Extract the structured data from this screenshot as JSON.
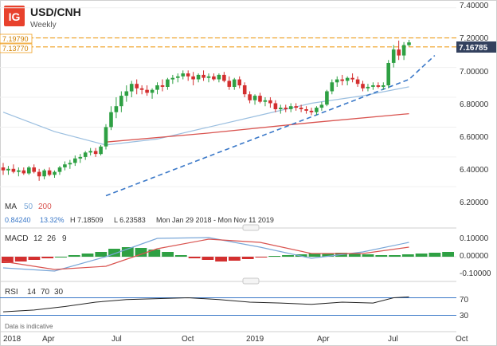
{
  "header": {
    "logo_text": "IG",
    "symbol": "USD/CNH",
    "interval": "Weekly",
    "price_badge": "7.16785",
    "level_labels": [
      "7.19790",
      "7.13770"
    ]
  },
  "price_axis_ticks": [
    "7.40000",
    "7.20000",
    "7.00000",
    "6.80000",
    "6.60000",
    "6.40000",
    "6.20000"
  ],
  "ma_legend": {
    "label": "MA",
    "p1": "50",
    "p2": "200",
    "v1": "0.84240",
    "v2": "13.32%",
    "high": "H 7.18509",
    "low": "L 6.23583",
    "range": "Mon Jan 29 2018 - Mon Nov 11 2019"
  },
  "macd_legend": {
    "label": "MACD",
    "p1": "12",
    "p2": "26",
    "p3": "9"
  },
  "macd_axis_ticks": [
    "0.10000",
    "0.00000",
    "-0.10000"
  ],
  "rsi_legend": {
    "label": "RSI",
    "p1": "14",
    "p2": "70",
    "p3": "30"
  },
  "rsi_axis_ticks": [
    "70",
    "30"
  ],
  "footnote": "Data is indicative",
  "x_ticks": [
    "2018",
    "Apr",
    "Jul",
    "Oct",
    "2019",
    "Apr",
    "Jul",
    "Oct"
  ],
  "colors": {
    "up": "#2ea043",
    "down": "#d32f2f",
    "ma50": "#9bbfe0",
    "ma200": "#d9534f",
    "level": "#f0a020",
    "trend": "#3a78c8",
    "badge": "#33415e"
  },
  "chart_data": {
    "type": "candlestick",
    "title": "USD/CNH",
    "interval": "Weekly",
    "ylim": [
      6.1,
      7.42
    ],
    "x_ticks": [
      "2018",
      "Apr",
      "Jul",
      "Oct",
      "2019",
      "Apr",
      "Jul",
      "Oct"
    ],
    "last_price": 7.16785,
    "levels": [
      7.1979,
      7.1377
    ],
    "candles": [
      [
        6.33,
        6.36,
        6.28,
        6.31
      ],
      [
        6.31,
        6.34,
        6.28,
        6.32
      ],
      [
        6.32,
        6.35,
        6.29,
        6.3
      ],
      [
        6.3,
        6.33,
        6.27,
        6.31
      ],
      [
        6.31,
        6.33,
        6.28,
        6.29
      ],
      [
        6.29,
        6.34,
        6.28,
        6.33
      ],
      [
        6.33,
        6.35,
        6.29,
        6.3
      ],
      [
        6.3,
        6.32,
        6.24,
        6.27
      ],
      [
        6.27,
        6.32,
        6.25,
        6.31
      ],
      [
        6.31,
        6.33,
        6.27,
        6.28
      ],
      [
        6.28,
        6.31,
        6.26,
        6.3
      ],
      [
        6.3,
        6.34,
        6.28,
        6.33
      ],
      [
        6.33,
        6.37,
        6.31,
        6.35
      ],
      [
        6.35,
        6.38,
        6.32,
        6.36
      ],
      [
        6.36,
        6.41,
        6.34,
        6.39
      ],
      [
        6.39,
        6.42,
        6.36,
        6.4
      ],
      [
        6.4,
        6.44,
        6.38,
        6.43
      ],
      [
        6.43,
        6.46,
        6.41,
        6.44
      ],
      [
        6.44,
        6.46,
        6.4,
        6.42
      ],
      [
        6.42,
        6.48,
        6.41,
        6.47
      ],
      [
        6.47,
        6.62,
        6.45,
        6.6
      ],
      [
        6.6,
        6.74,
        6.58,
        6.7
      ],
      [
        6.7,
        6.8,
        6.66,
        6.74
      ],
      [
        6.74,
        6.84,
        6.7,
        6.81
      ],
      [
        6.81,
        6.88,
        6.77,
        6.84
      ],
      [
        6.84,
        6.91,
        6.8,
        6.89
      ],
      [
        6.89,
        6.92,
        6.82,
        6.86
      ],
      [
        6.86,
        6.88,
        6.82,
        6.85
      ],
      [
        6.85,
        6.88,
        6.81,
        6.83
      ],
      [
        6.83,
        6.86,
        6.79,
        6.85
      ],
      [
        6.85,
        6.9,
        6.82,
        6.88
      ],
      [
        6.88,
        6.92,
        6.84,
        6.87
      ],
      [
        6.87,
        6.93,
        6.85,
        6.92
      ],
      [
        6.92,
        6.95,
        6.89,
        6.93
      ],
      [
        6.93,
        6.96,
        6.9,
        6.94
      ],
      [
        6.94,
        6.98,
        6.92,
        6.96
      ],
      [
        6.96,
        6.98,
        6.91,
        6.94
      ],
      [
        6.94,
        6.97,
        6.88,
        6.92
      ],
      [
        6.92,
        6.96,
        6.9,
        6.95
      ],
      [
        6.95,
        6.98,
        6.91,
        6.93
      ],
      [
        6.93,
        6.96,
        6.9,
        6.94
      ],
      [
        6.94,
        6.96,
        6.91,
        6.92
      ],
      [
        6.92,
        6.96,
        6.9,
        6.95
      ],
      [
        6.95,
        6.97,
        6.9,
        6.91
      ],
      [
        6.91,
        6.94,
        6.85,
        6.87
      ],
      [
        6.87,
        6.93,
        6.85,
        6.92
      ],
      [
        6.92,
        6.94,
        6.86,
        6.88
      ],
      [
        6.88,
        6.9,
        6.8,
        6.82
      ],
      [
        6.82,
        6.84,
        6.76,
        6.78
      ],
      [
        6.78,
        6.82,
        6.75,
        6.81
      ],
      [
        6.81,
        6.83,
        6.76,
        6.77
      ],
      [
        6.77,
        6.8,
        6.74,
        6.78
      ],
      [
        6.78,
        6.8,
        6.73,
        6.76
      ],
      [
        6.76,
        6.78,
        6.7,
        6.72
      ],
      [
        6.72,
        6.75,
        6.69,
        6.73
      ],
      [
        6.73,
        6.75,
        6.7,
        6.72
      ],
      [
        6.72,
        6.76,
        6.7,
        6.74
      ],
      [
        6.74,
        6.76,
        6.71,
        6.73
      ],
      [
        6.73,
        6.75,
        6.7,
        6.72
      ],
      [
        6.72,
        6.74,
        6.69,
        6.71
      ],
      [
        6.71,
        6.73,
        6.68,
        6.7
      ],
      [
        6.7,
        6.74,
        6.68,
        6.73
      ],
      [
        6.73,
        6.77,
        6.71,
        6.75
      ],
      [
        6.75,
        6.85,
        6.74,
        6.84
      ],
      [
        6.84,
        6.92,
        6.82,
        6.9
      ],
      [
        6.9,
        6.94,
        6.87,
        6.92
      ],
      [
        6.92,
        6.95,
        6.88,
        6.91
      ],
      [
        6.91,
        6.94,
        6.88,
        6.93
      ],
      [
        6.93,
        6.96,
        6.9,
        6.92
      ],
      [
        6.92,
        6.94,
        6.87,
        6.89
      ],
      [
        6.89,
        6.91,
        6.84,
        6.86
      ],
      [
        6.86,
        6.89,
        6.84,
        6.87
      ],
      [
        6.87,
        6.9,
        6.85,
        6.88
      ],
      [
        6.88,
        6.9,
        6.86,
        6.87
      ],
      [
        6.87,
        6.9,
        6.85,
        6.88
      ],
      [
        6.88,
        7.05,
        6.86,
        7.03
      ],
      [
        7.03,
        7.15,
        7.0,
        7.12
      ],
      [
        7.12,
        7.18,
        7.05,
        7.08
      ],
      [
        7.08,
        7.17,
        7.05,
        7.15
      ],
      [
        7.15,
        7.185,
        7.14,
        7.168
      ]
    ],
    "ma50": {
      "x": [
        0,
        10,
        20,
        30,
        40,
        50,
        60,
        70,
        79
      ],
      "y": [
        6.7,
        6.57,
        6.48,
        6.52,
        6.6,
        6.68,
        6.76,
        6.81,
        6.87
      ]
    },
    "ma200": {
      "x": [
        20,
        40,
        60,
        79
      ],
      "y": [
        6.5,
        6.56,
        6.63,
        6.69
      ]
    },
    "trendline": {
      "x": [
        20,
        79,
        84
      ],
      "y": [
        6.14,
        6.92,
        7.08
      ]
    },
    "macd": {
      "ylim": [
        -0.14,
        0.16
      ],
      "macd_line": {
        "x": [
          0,
          10,
          20,
          30,
          40,
          50,
          60,
          70,
          79
        ],
        "y": [
          -0.07,
          -0.09,
          0.0,
          0.115,
          0.12,
          0.06,
          -0.01,
          0.03,
          0.09
        ]
      },
      "signal_line": {
        "x": [
          0,
          10,
          20,
          30,
          40,
          50,
          60,
          70,
          79
        ],
        "y": [
          -0.03,
          -0.08,
          -0.06,
          0.05,
          0.11,
          0.09,
          0.02,
          0.02,
          0.06
        ]
      },
      "histogram": [
        -0.04,
        -0.03,
        -0.02,
        -0.01,
        0.0,
        0.01,
        0.02,
        0.03,
        0.05,
        0.06,
        0.055,
        0.045,
        0.03,
        0.01,
        -0.01,
        -0.02,
        -0.03,
        -0.025,
        -0.015,
        -0.005,
        0.005,
        0.01,
        0.015,
        0.02,
        0.022,
        0.025,
        0.02,
        0.015,
        0.01,
        0.01,
        0.015,
        0.02,
        0.025,
        0.03
      ]
    },
    "rsi": {
      "ylim": [
        0,
        100
      ],
      "levels": [
        70,
        30
      ],
      "x": [
        0,
        6,
        12,
        18,
        24,
        30,
        36,
        42,
        48,
        54,
        60,
        66,
        72,
        76,
        79
      ],
      "y": [
        38,
        42,
        50,
        60,
        66,
        68,
        70,
        66,
        60,
        58,
        55,
        60,
        58,
        70,
        72
      ]
    }
  }
}
